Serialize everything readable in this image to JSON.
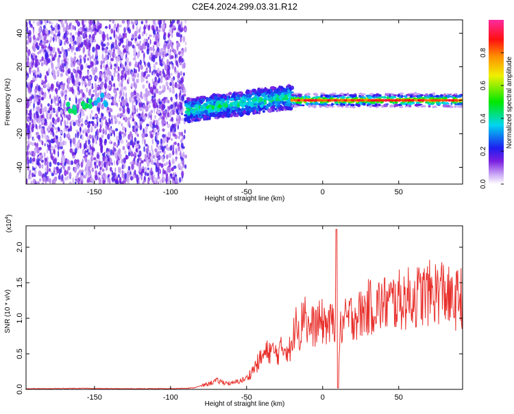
{
  "title": "C2E4.2024.299.03.31.R12",
  "chart_data": [
    {
      "type": "heatmap",
      "xlabel": "Height of straight line (km)",
      "ylabel": "Frequency (Hz)",
      "xlim": [
        -195,
        92
      ],
      "ylim": [
        -50,
        48
      ],
      "xticks": [
        -150,
        -100,
        -50,
        0,
        50
      ],
      "yticks": [
        -40,
        -20,
        0,
        20,
        40
      ],
      "colorbar": {
        "label": "Normalized spectral amplitude",
        "range": [
          0.0,
          1.0
        ],
        "ticks": [
          0.0,
          0.2,
          0.4,
          0.6,
          0.8
        ],
        "tick_labels": [
          "0.0",
          "0.2",
          "0.4",
          "0.6",
          "0.8"
        ],
        "colormap": "rainbow (purple-blue-cyan-green-yellow-orange-red-magenta)"
      },
      "regions": [
        {
          "x_range": [
            -195,
            -90
          ],
          "freq_range": [
            -50,
            48
          ],
          "amplitude": 0.1
        },
        {
          "x_range": [
            -90,
            -20
          ],
          "freq_range": [
            -12,
            5
          ],
          "amplitude": 0.35
        },
        {
          "x_range": [
            -20,
            92
          ],
          "freq_range": [
            -2,
            2
          ],
          "amplitude": 0.85
        }
      ]
    },
    {
      "type": "line",
      "xlabel": "Height of straight line (km)",
      "ylabel": "SNR (10 * v/v)",
      "y_multiplier": "(x10",
      "y_multiplier_exp": "4",
      "y_multiplier_close": ")",
      "xlim": [
        -195,
        92
      ],
      "ylim": [
        0,
        2.3
      ],
      "xticks": [
        -150,
        -100,
        -50,
        0,
        50
      ],
      "yticks": [
        0.0,
        0.5,
        1.0,
        1.5,
        2.0
      ],
      "ytick_labels": [
        "0.0",
        "0.5",
        "1.0",
        "1.5",
        "2.0"
      ],
      "color": "#e8302c",
      "series": [
        {
          "x": [
            -195,
            -180,
            -160,
            -140,
            -120,
            -100,
            -85,
            -75,
            -70,
            -60,
            -50,
            -45,
            -40,
            -35,
            -30,
            -25,
            -20,
            -17,
            -15,
            -12,
            -10,
            -5,
            0,
            5,
            8,
            9,
            10,
            12,
            15,
            20,
            25,
            30,
            40,
            50,
            60,
            70,
            80,
            85,
            90,
            92
          ],
          "y": [
            0.01,
            0.01,
            0.015,
            0.01,
            0.01,
            0.01,
            0.02,
            0.08,
            0.12,
            0.08,
            0.15,
            0.3,
            0.45,
            0.55,
            0.5,
            0.6,
            0.55,
            1.2,
            0.7,
            1.25,
            0.85,
            0.9,
            0.95,
            0.9,
            1.0,
            2.25,
            0.15,
            0.9,
            0.95,
            1.05,
            1.05,
            1.15,
            1.2,
            1.25,
            1.3,
            1.35,
            1.4,
            1.2,
            1.3,
            1.3
          ]
        }
      ]
    }
  ]
}
